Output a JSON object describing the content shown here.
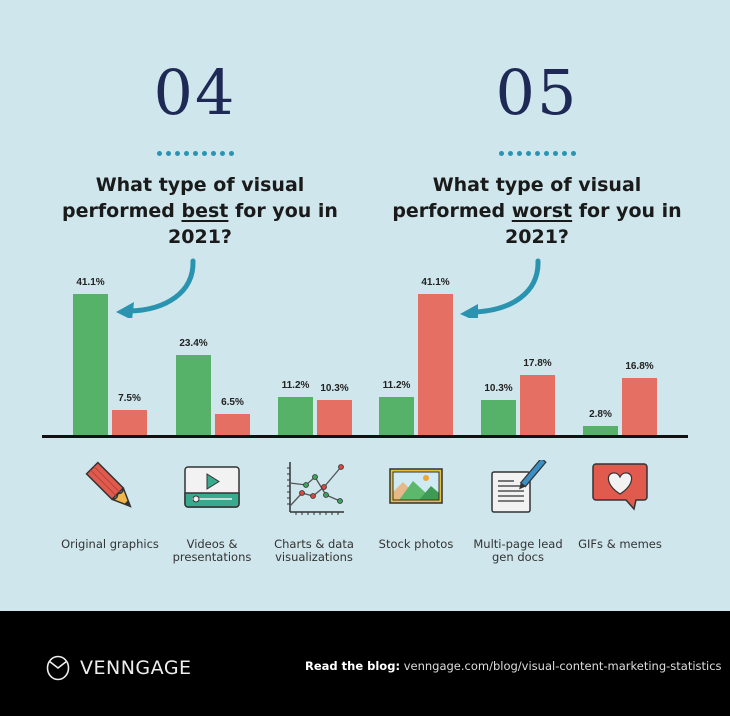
{
  "left": {
    "number": "04",
    "question_pre": "What type of visual performed ",
    "question_emph": "best",
    "question_post": " for you in 2021?"
  },
  "right": {
    "number": "05",
    "question_pre": "What type of visual performed ",
    "question_emph": "worst",
    "question_post": " for you in 2021?"
  },
  "colors": {
    "best": "#56b268",
    "worst": "#e46f62",
    "accent": "#2a93b0",
    "title": "#1e2a55"
  },
  "chart_data": {
    "type": "bar",
    "title": "What type of visual performed best / worst for you in 2021?",
    "categories": [
      "Original graphics",
      "Videos & presentations",
      "Charts & data visualizations",
      "Stock photos",
      "Multi-page lead gen docs",
      "GIFs & memes"
    ],
    "series": [
      {
        "name": "Performed best (04)",
        "color": "#56b268",
        "values": [
          41.1,
          23.4,
          11.2,
          11.2,
          10.3,
          2.8
        ]
      },
      {
        "name": "Performed worst (05)",
        "color": "#e46f62",
        "values": [
          7.5,
          6.5,
          10.3,
          41.1,
          17.8,
          16.8
        ]
      }
    ],
    "value_labels": {
      "best": [
        "41.1%",
        "23.4%",
        "11.2%",
        "11.2%",
        "10.3%",
        "2.8%"
      ],
      "worst": [
        "7.5%",
        "6.5%",
        "10.3%",
        "41.1%",
        "17.8%",
        "16.8%"
      ]
    },
    "xlabel": "",
    "ylabel": "",
    "ylim": [
      0,
      45
    ],
    "grid": false,
    "legend": "none"
  },
  "categories": [
    {
      "label": "Original graphics",
      "icon": "pencil-icon"
    },
    {
      "label": "Videos & presentations",
      "icon": "video-player-icon"
    },
    {
      "label": "Charts & data visualizations",
      "icon": "line-chart-icon"
    },
    {
      "label": "Stock photos",
      "icon": "landscape-photo-icon"
    },
    {
      "label": "Multi-page lead gen docs",
      "icon": "document-pen-icon"
    },
    {
      "label": "GIFs & memes",
      "icon": "heart-speech-bubble-icon"
    }
  ],
  "footer": {
    "brand": "VENNGAGE",
    "blog_label": "Read the blog:",
    "blog_url": "venngage.com/blog/visual-content-marketing-statistics"
  }
}
